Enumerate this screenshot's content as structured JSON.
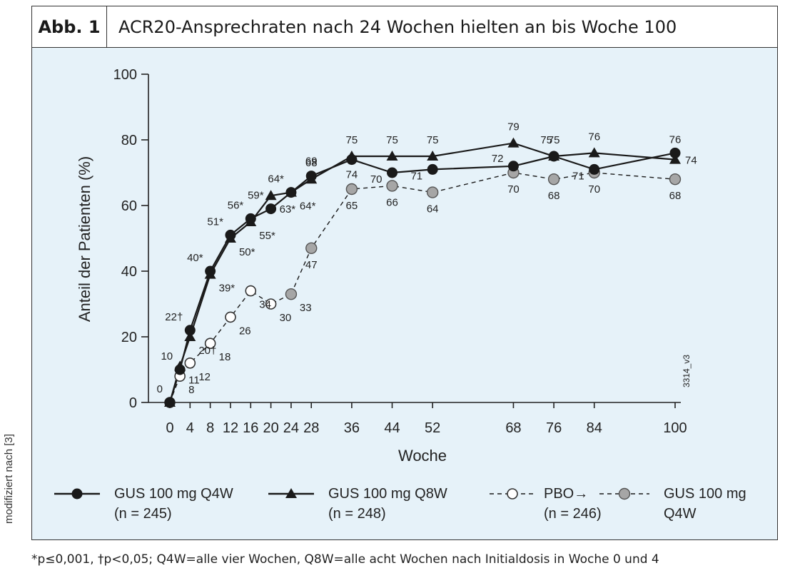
{
  "figure": {
    "label": "Abb. 1",
    "title": "ACR20-Ansprechraten nach 24 Wochen hielten an bis Woche 100",
    "side_note": "modifiziert nach [3]",
    "footnote": "*p≤0,001, †p<0,05; Q4W=alle vier Wochen, Q8W=alle acht Wochen nach Initialdosis in Woche 0 und 4",
    "code": "3314_v3"
  },
  "chart_data": {
    "type": "line",
    "xlabel": "Woche",
    "ylabel": "Anteil der Patienten (%)",
    "xlim": [
      0,
      100
    ],
    "ylim": [
      0,
      100
    ],
    "xticks": [
      0,
      4,
      8,
      12,
      16,
      20,
      24,
      28,
      36,
      44,
      52,
      68,
      76,
      84,
      100
    ],
    "yticks": [
      0,
      20,
      40,
      60,
      80,
      100
    ],
    "grid": false,
    "legend_position": "bottom",
    "series": [
      {
        "key": "q4w",
        "name_line1": "GUS 100 mg Q4W",
        "name_line2": "(n = 245)",
        "color": "#1a1a1a",
        "marker": "filled-circle",
        "line": "solid",
        "x": [
          0,
          2,
          4,
          8,
          12,
          16,
          20,
          24,
          28,
          36,
          44,
          52,
          68,
          76,
          84,
          100
        ],
        "y": [
          0,
          10,
          22,
          40,
          51,
          56,
          59,
          64,
          69,
          74,
          70,
          71,
          72,
          75,
          71,
          76
        ],
        "labels": [
          "",
          "10",
          "22†",
          "40*",
          "51*",
          "56*",
          "59*",
          "64*",
          "69",
          "74",
          "70",
          "71",
          "72",
          "75",
          "71",
          "76"
        ]
      },
      {
        "key": "q8w",
        "name_line1": "GUS 100 mg Q8W",
        "name_line2": "(n = 248)",
        "color": "#1a1a1a",
        "marker": "filled-triangle",
        "line": "solid",
        "x": [
          0,
          2,
          4,
          8,
          12,
          16,
          20,
          24,
          28,
          36,
          44,
          52,
          68,
          76,
          84,
          100
        ],
        "y": [
          0,
          11,
          20,
          39,
          50,
          55,
          63,
          64,
          68,
          75,
          75,
          75,
          79,
          75,
          76,
          74
        ],
        "labels": [
          "0",
          "11",
          "20†",
          "39*",
          "50*",
          "55*",
          "63*",
          "64*",
          "68",
          "75",
          "75",
          "75",
          "79",
          "75",
          "76",
          "74"
        ]
      },
      {
        "key": "pbo",
        "name_line1": "PBO→",
        "name_line2": "(n = 246)",
        "color": "#1a1a1a",
        "marker": "open-circle",
        "line": "dashed",
        "x": [
          0,
          2,
          4,
          8,
          12,
          16,
          20,
          24
        ],
        "y": [
          0,
          8,
          12,
          18,
          26,
          34,
          30,
          33
        ],
        "labels": [
          "",
          "8",
          "12",
          "18",
          "26",
          "34",
          "30",
          "33"
        ]
      },
      {
        "key": "pbo_gus",
        "name_line1": "GUS 100 mg",
        "name_line2": "Q4W",
        "color": "#a6a6a6",
        "marker": "grey-circle",
        "line": "dashed",
        "x": [
          24,
          28,
          36,
          44,
          52,
          68,
          76,
          84,
          100
        ],
        "y": [
          33,
          47,
          65,
          66,
          64,
          70,
          68,
          70,
          68
        ],
        "labels": [
          "",
          "47",
          "65",
          "66",
          "64",
          "70",
          "68",
          "70",
          "68"
        ]
      }
    ]
  }
}
